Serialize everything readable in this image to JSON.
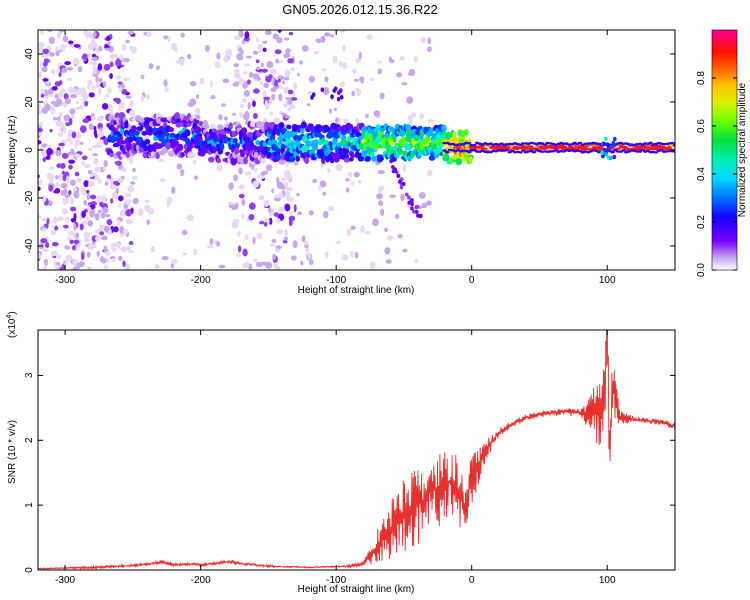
{
  "title": "GN05.2026.012.15.36.R22",
  "colors": {
    "axis": "#000000",
    "snr_line": "#e8302e",
    "palette": [
      "#e8d8f4",
      "#c7a6ec",
      "#8f3ff0",
      "#6a00ff",
      "#2b00ff",
      "#0040ff",
      "#00b4ff",
      "#00f0d0",
      "#00e060",
      "#50ff00",
      "#c8f000",
      "#ffd000",
      "#ff7000",
      "#ff1500",
      "#ff0060",
      "#ff0090"
    ]
  },
  "chart_data": [
    {
      "type": "heatmap",
      "name": "spectrogram",
      "xlabel": "Height of straight line (km)",
      "ylabel": "Frequency (Hz)",
      "xlim": [
        -320,
        150
      ],
      "ylim": [
        -50,
        50
      ],
      "xticks": [
        -300,
        -200,
        -100,
        0,
        100
      ],
      "yticks": [
        -40,
        -20,
        0,
        20,
        40
      ],
      "colorbar": {
        "label": "Normalized spectral amplitude",
        "range": [
          0.0,
          1.0
        ],
        "ticks": [
          0.0,
          0.2,
          0.4,
          0.6,
          0.8
        ]
      },
      "features": [
        {
          "name": "main-band",
          "x": [
            -265,
            150
          ],
          "freq_center": 2,
          "note": "frequency band near 0 Hz, amplitude increasing with height"
        },
        {
          "name": "scatter-region-1",
          "x": [
            -320,
            -250
          ],
          "freq": [
            -50,
            50
          ]
        },
        {
          "name": "scatter-region-2",
          "x": [
            -175,
            -130
          ],
          "freq": [
            -50,
            50
          ]
        },
        {
          "name": "branch-down",
          "x": [
            -60,
            -38
          ],
          "freq": [
            -5,
            -28
          ]
        },
        {
          "name": "blip-upper",
          "x": [
            -120,
            -95
          ],
          "freq": [
            20,
            26
          ]
        }
      ]
    },
    {
      "type": "line",
      "name": "snr",
      "xlabel": "Height of straight line (km)",
      "ylabel": "SNR (10 * v/v)",
      "multiplier": "(x10",
      "multiplier_exp": "4",
      "multiplier_close": ")",
      "xlim": [
        -320,
        150
      ],
      "ylim": [
        0,
        3.7
      ],
      "xticks": [
        -300,
        -200,
        -100,
        0,
        100
      ],
      "yticks": [
        0,
        1,
        2,
        3
      ],
      "series": [
        {
          "name": "SNR",
          "x": [
            -320,
            -300,
            -280,
            -260,
            -250,
            -240,
            -230,
            -220,
            -210,
            -200,
            -190,
            -180,
            -170,
            -160,
            -150,
            -140,
            -130,
            -120,
            -110,
            -100,
            -90,
            -80,
            -75,
            -70,
            -65,
            -60,
            -55,
            -50,
            -45,
            -40,
            -35,
            -30,
            -25,
            -20,
            -15,
            -10,
            -5,
            0,
            5,
            10,
            15,
            20,
            30,
            40,
            50,
            60,
            70,
            80,
            85,
            90,
            95,
            98,
            100,
            102,
            104,
            106,
            110,
            120,
            130,
            140,
            150
          ],
          "y": [
            0.02,
            0.03,
            0.04,
            0.06,
            0.07,
            0.09,
            0.12,
            0.08,
            0.09,
            0.08,
            0.1,
            0.13,
            0.1,
            0.08,
            0.06,
            0.05,
            0.05,
            0.04,
            0.05,
            0.05,
            0.06,
            0.1,
            0.2,
            0.35,
            0.5,
            0.6,
            0.72,
            0.85,
            0.95,
            1.0,
            1.1,
            1.25,
            1.2,
            1.3,
            1.4,
            1.2,
            0.9,
            1.4,
            1.6,
            1.8,
            2.0,
            2.1,
            2.25,
            2.35,
            2.4,
            2.42,
            2.45,
            2.42,
            2.4,
            2.45,
            2.4,
            3.0,
            3.7,
            1.7,
            2.8,
            2.6,
            2.35,
            2.32,
            2.3,
            2.28,
            2.22
          ],
          "noise": [
            0.01,
            0.01,
            0.02,
            0.02,
            0.02,
            0.02,
            0.03,
            0.02,
            0.02,
            0.02,
            0.02,
            0.03,
            0.02,
            0.02,
            0.02,
            0.01,
            0.01,
            0.01,
            0.01,
            0.01,
            0.02,
            0.05,
            0.12,
            0.25,
            0.35,
            0.45,
            0.55,
            0.6,
            0.6,
            0.62,
            0.6,
            0.6,
            0.55,
            0.6,
            0.55,
            0.5,
            0.4,
            0.4,
            0.3,
            0.2,
            0.12,
            0.08,
            0.06,
            0.05,
            0.05,
            0.05,
            0.06,
            0.08,
            0.2,
            0.4,
            0.6,
            0.8,
            1.0,
            0.8,
            0.6,
            0.4,
            0.1,
            0.05,
            0.05,
            0.05,
            0.05
          ]
        }
      ]
    }
  ]
}
